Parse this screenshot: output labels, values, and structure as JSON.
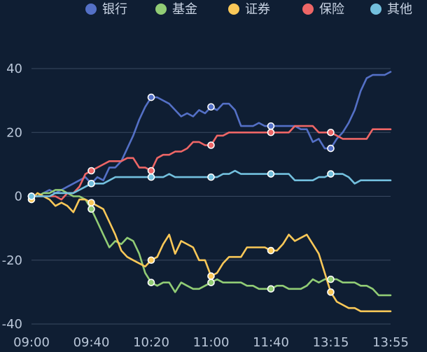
{
  "chart_data": {
    "type": "line",
    "x_ticks": [
      "09:00",
      "09:40",
      "10:20",
      "11:00",
      "11:40",
      "13:15",
      "13:55"
    ],
    "yticks": [
      40,
      20,
      0,
      -20,
      -40
    ],
    "ylim": [
      -40,
      40
    ],
    "grid": true,
    "legend_position": "top",
    "series": [
      {
        "name": "银行",
        "color": "#5470c6",
        "values": [
          0,
          0,
          1,
          2,
          1,
          2,
          3,
          4,
          5,
          6,
          4,
          6,
          5,
          9,
          9,
          11,
          15,
          19,
          24,
          28,
          31,
          31,
          30,
          29,
          27,
          25,
          26,
          25,
          27,
          26,
          28,
          27,
          29,
          29,
          27,
          22,
          22,
          22,
          23,
          22,
          22,
          22,
          22,
          22,
          22,
          21,
          21,
          17,
          18,
          15,
          15,
          18,
          20,
          23,
          27,
          33,
          37,
          38,
          38,
          38,
          39
        ]
      },
      {
        "name": "基金",
        "color": "#91cc75",
        "values": [
          0,
          0,
          1,
          1,
          2,
          2,
          1,
          0,
          0,
          -1,
          -4,
          -8,
          -12,
          -16,
          -14,
          -15,
          -13,
          -14,
          -18,
          -24,
          -27,
          -28,
          -27,
          -27,
          -30,
          -27,
          -28,
          -29,
          -29,
          -28,
          -27,
          -26,
          -27,
          -27,
          -27,
          -27,
          -28,
          -28,
          -29,
          -29,
          -29,
          -28,
          -28,
          -29,
          -29,
          -29,
          -28,
          -26,
          -27,
          -26,
          -26,
          -26,
          -27,
          -27,
          -27,
          -28,
          -28,
          -29,
          -31,
          -31,
          -31
        ]
      },
      {
        "name": "证券",
        "color": "#fac858",
        "values": [
          -1,
          1,
          0,
          -1,
          -3,
          -2,
          -3,
          -5,
          -1,
          -1,
          -2,
          -3,
          -4,
          -8,
          -12,
          -17,
          -19,
          -20,
          -21,
          -22,
          -20,
          -19,
          -15,
          -12,
          -18,
          -14,
          -15,
          -16,
          -20,
          -20,
          -25,
          -24,
          -21,
          -19,
          -19,
          -19,
          -16,
          -16,
          -16,
          -16,
          -17,
          -17,
          -15,
          -12,
          -14,
          -13,
          -12,
          -15,
          -18,
          -24,
          -30,
          -33,
          -34,
          -35,
          -35,
          -36,
          -36,
          -36,
          -36,
          -36,
          -36
        ]
      },
      {
        "name": "保险",
        "color": "#ee6666",
        "values": [
          0,
          0,
          0,
          0,
          0,
          -1,
          1,
          1,
          3,
          7,
          8,
          9,
          10,
          11,
          11,
          11,
          12,
          12,
          9,
          9,
          8,
          12,
          13,
          13,
          14,
          14,
          15,
          17,
          17,
          16,
          16,
          19,
          19,
          20,
          20,
          20,
          20,
          20,
          20,
          20,
          20,
          20,
          20,
          20,
          22,
          22,
          22,
          22,
          20,
          20,
          20,
          19,
          18,
          18,
          18,
          18,
          18,
          21,
          21,
          21,
          21
        ]
      },
      {
        "name": "其他",
        "color": "#73c0de",
        "values": [
          0,
          0,
          0,
          0,
          1,
          1,
          1,
          1,
          2,
          3,
          4,
          4,
          4,
          5,
          6,
          6,
          6,
          6,
          6,
          6,
          6,
          6,
          6,
          7,
          6,
          6,
          6,
          6,
          6,
          6,
          6,
          6,
          7,
          7,
          8,
          7,
          7,
          7,
          7,
          7,
          7,
          7,
          7,
          7,
          5,
          5,
          5,
          5,
          6,
          6,
          7,
          7,
          7,
          6,
          4,
          5,
          5,
          5,
          5,
          5,
          5
        ]
      }
    ]
  }
}
